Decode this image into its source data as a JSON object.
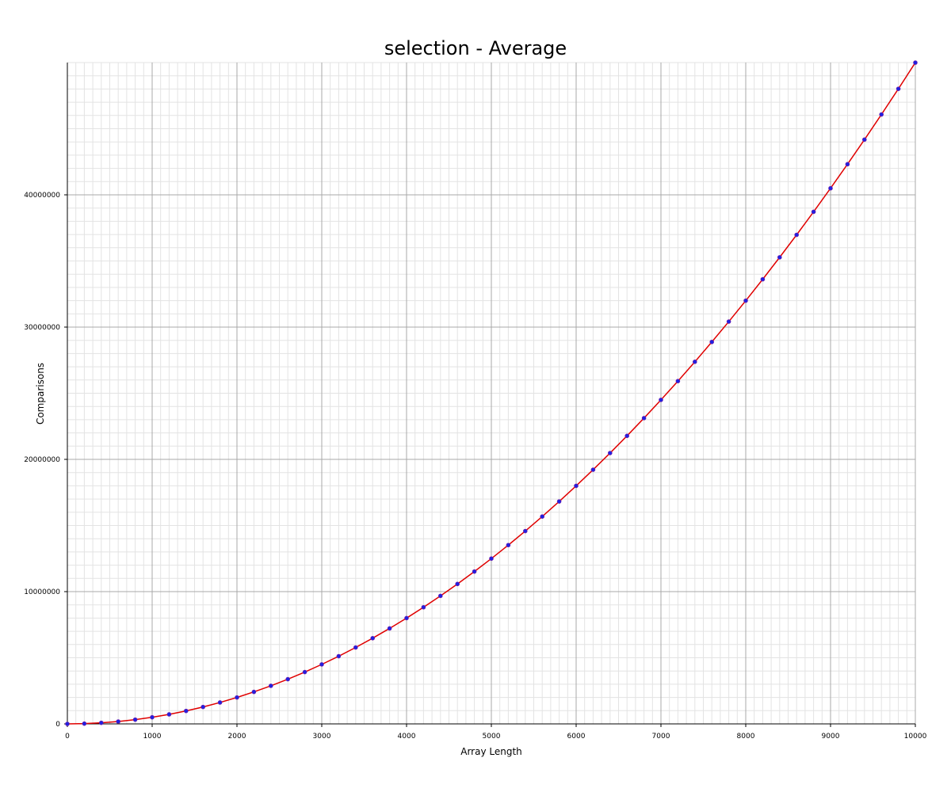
{
  "chart_data": {
    "type": "line",
    "title": "selection - Average",
    "xlabel": "Array Length",
    "ylabel": "Comparisons",
    "xlim": [
      0,
      10000
    ],
    "ylim": [
      0,
      50000000
    ],
    "x_ticks": [
      0,
      1000,
      2000,
      3000,
      4000,
      5000,
      6000,
      7000,
      8000,
      9000,
      10000
    ],
    "y_ticks": [
      0,
      10000000,
      20000000,
      30000000,
      40000000
    ],
    "x_tick_labels": [
      "0",
      "1000",
      "2000",
      "3000",
      "4000",
      "5000",
      "6000",
      "7000",
      "8000",
      "9000",
      "10000"
    ],
    "y_tick_labels": [
      "0",
      "10000000",
      "20000000",
      "30000000",
      "40000000"
    ],
    "grid": true,
    "series": [
      {
        "line_color": "#e00000",
        "marker_color": "#2020e0",
        "x": [
          0,
          200,
          400,
          600,
          800,
          1000,
          1200,
          1400,
          1600,
          1800,
          2000,
          2200,
          2400,
          2600,
          2800,
          3000,
          3200,
          3400,
          3600,
          3800,
          4000,
          4200,
          4400,
          4600,
          4800,
          5000,
          5200,
          5400,
          5600,
          5800,
          6000,
          6200,
          6400,
          6600,
          6800,
          7000,
          7200,
          7400,
          7600,
          7800,
          8000,
          8200,
          8400,
          8600,
          8800,
          9000,
          9200,
          9400,
          9600,
          9800,
          10000
        ],
        "y": [
          0,
          19900,
          79800,
          179700,
          319600,
          499500,
          719400,
          979300,
          1279200,
          1619100,
          1999000,
          2418900,
          2878800,
          3378700,
          3918600,
          4498500,
          5118400,
          5778300,
          6478200,
          7218100,
          7998000,
          8817900,
          9677800,
          10577700,
          11517600,
          12497500,
          13517400,
          14577300,
          15677200,
          16817100,
          17997000,
          19216900,
          20476800,
          21776700,
          23116600,
          24496500,
          25916400,
          27376300,
          28876200,
          30416100,
          31996000,
          33615900,
          35275800,
          36975700,
          38715600,
          40495500,
          42315400,
          44175300,
          46075200,
          48015100,
          49995000
        ]
      }
    ]
  }
}
